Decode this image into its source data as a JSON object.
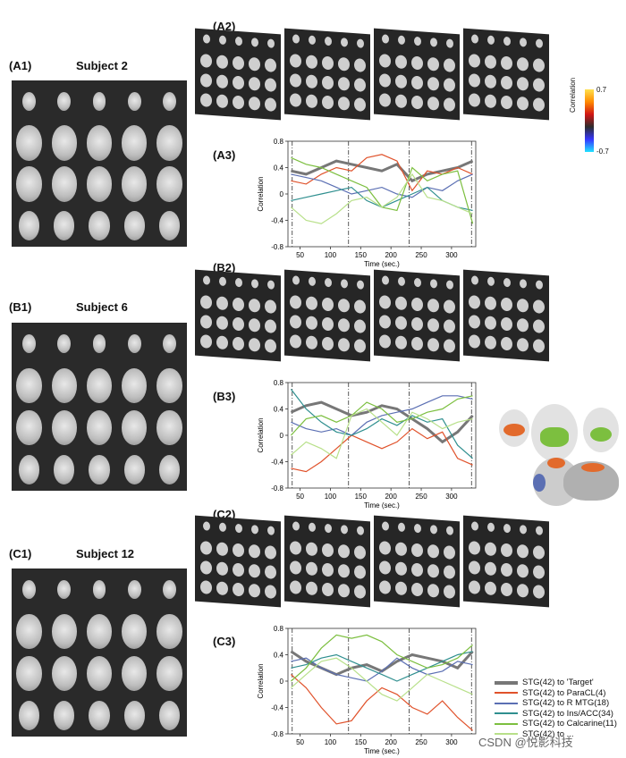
{
  "labels": {
    "a1": "(A1)",
    "a2": "(A2)",
    "a3": "(A3)",
    "b1": "(B1)",
    "b2": "(B2)",
    "b3": "(B3)",
    "c1": "(C1)",
    "c2": "(C2)",
    "c3": "(C3)"
  },
  "subjects": {
    "a": "Subject 2",
    "b": "Subject 6",
    "c": "Subject 12"
  },
  "colorbar": {
    "max": "0.7",
    "min": "-0.7",
    "label": "Correlation"
  },
  "legend": [
    {
      "name": "STG(42) to 'Target'",
      "color": "#777777"
    },
    {
      "name": "STG(42) to ParaCL(4)",
      "color": "#e0522b"
    },
    {
      "name": "STG(42) to R MTG(18)",
      "color": "#5b6fb3"
    },
    {
      "name": "STG(42) to Ins/ACC(34)",
      "color": "#2f8f8f"
    },
    {
      "name": "STG(42) to Calcarine(11)",
      "color": "#7cbf3f"
    },
    {
      "name": "STG(42) to ...",
      "color": "#b8e08a"
    }
  ],
  "watermark": "CSDN @悦影科技",
  "chart_data": [
    {
      "type": "line",
      "id": "A3",
      "xlabel": "Time (sec.)",
      "ylabel": "Correlation",
      "xlim": [
        30,
        340
      ],
      "ylim": [
        -0.8,
        0.8
      ],
      "xticks": [
        50,
        100,
        150,
        200,
        250,
        300
      ],
      "yticks": [
        -0.8,
        -0.4,
        0,
        0.4,
        0.8
      ],
      "markers": [
        37,
        130,
        230,
        333
      ],
      "x": [
        35,
        60,
        85,
        110,
        135,
        160,
        185,
        210,
        235,
        260,
        285,
        310,
        335
      ],
      "series": [
        {
          "values": [
            0.35,
            0.3,
            0.4,
            0.5,
            0.45,
            0.4,
            0.35,
            0.45,
            0.2,
            0.3,
            0.35,
            0.4,
            0.5
          ]
        },
        {
          "values": [
            0.2,
            0.15,
            0.3,
            0.4,
            0.35,
            0.55,
            0.6,
            0.5,
            0.05,
            0.35,
            0.3,
            0.4,
            0.3
          ]
        },
        {
          "values": [
            0.3,
            0.25,
            0.2,
            0.1,
            0.0,
            0.05,
            0.1,
            0.0,
            -0.05,
            0.1,
            0.05,
            0.2,
            0.3
          ]
        },
        {
          "values": [
            -0.1,
            -0.05,
            0.0,
            0.05,
            0.1,
            -0.1,
            -0.2,
            -0.1,
            0.0,
            0.1,
            -0.1,
            -0.2,
            -0.25
          ]
        },
        {
          "values": [
            0.55,
            0.45,
            0.4,
            0.3,
            0.2,
            0.1,
            -0.2,
            -0.25,
            0.4,
            0.2,
            0.3,
            0.35,
            -0.45
          ]
        },
        {
          "values": [
            -0.2,
            -0.4,
            -0.45,
            -0.3,
            -0.1,
            -0.05,
            -0.2,
            -0.05,
            0.3,
            -0.05,
            -0.1,
            -0.2,
            -0.3
          ]
        }
      ]
    },
    {
      "type": "line",
      "id": "B3",
      "xlabel": "Time (sec.)",
      "ylabel": "Correlation",
      "xlim": [
        30,
        340
      ],
      "ylim": [
        -0.8,
        0.8
      ],
      "xticks": [
        50,
        100,
        150,
        200,
        250,
        300
      ],
      "yticks": [
        -0.8,
        -0.4,
        0,
        0.4,
        0.8
      ],
      "markers": [
        37,
        130,
        230,
        333
      ],
      "x": [
        35,
        60,
        85,
        110,
        135,
        160,
        185,
        210,
        235,
        260,
        285,
        310,
        335
      ],
      "series": [
        {
          "values": [
            0.35,
            0.45,
            0.5,
            0.4,
            0.3,
            0.35,
            0.45,
            0.4,
            0.25,
            0.1,
            -0.1,
            0.05,
            0.3
          ]
        },
        {
          "values": [
            -0.5,
            -0.55,
            -0.4,
            -0.2,
            0.0,
            -0.1,
            -0.2,
            -0.1,
            0.1,
            -0.05,
            0.05,
            -0.35,
            -0.45
          ]
        },
        {
          "values": [
            0.2,
            0.1,
            0.05,
            0.1,
            0.0,
            0.2,
            0.3,
            0.35,
            0.4,
            0.5,
            0.6,
            0.6,
            0.55
          ]
        },
        {
          "values": [
            0.7,
            0.4,
            0.2,
            0.05,
            0.0,
            0.1,
            0.25,
            0.15,
            0.3,
            0.2,
            0.25,
            -0.15,
            -0.35
          ]
        },
        {
          "values": [
            0.0,
            0.25,
            0.3,
            0.2,
            0.3,
            0.5,
            0.4,
            0.2,
            0.25,
            0.35,
            0.4,
            0.55,
            0.6
          ]
        },
        {
          "values": [
            -0.3,
            -0.1,
            -0.2,
            -0.35,
            0.3,
            0.4,
            0.2,
            0.0,
            0.35,
            0.25,
            0.1,
            0.2,
            0.25
          ]
        }
      ]
    },
    {
      "type": "line",
      "id": "C3",
      "xlabel": "Time (sec.)",
      "ylabel": "Correlation",
      "xlim": [
        30,
        340
      ],
      "ylim": [
        -0.8,
        0.8
      ],
      "xticks": [
        50,
        100,
        150,
        200,
        250,
        300
      ],
      "yticks": [
        -0.8,
        -0.4,
        0,
        0.4,
        0.8
      ],
      "markers": [
        37,
        130,
        230,
        333
      ],
      "x": [
        35,
        60,
        85,
        110,
        135,
        160,
        185,
        210,
        235,
        260,
        285,
        310,
        335
      ],
      "series": [
        {
          "values": [
            0.45,
            0.3,
            0.2,
            0.1,
            0.2,
            0.25,
            0.15,
            0.3,
            0.4,
            0.35,
            0.3,
            0.2,
            0.45
          ]
        },
        {
          "values": [
            0.1,
            -0.1,
            -0.4,
            -0.65,
            -0.6,
            -0.3,
            -0.1,
            -0.2,
            -0.4,
            -0.5,
            -0.3,
            -0.55,
            -0.75
          ]
        },
        {
          "values": [
            0.3,
            0.35,
            0.2,
            0.1,
            0.05,
            0.0,
            0.15,
            0.35,
            0.2,
            0.1,
            0.15,
            0.3,
            0.25
          ]
        },
        {
          "values": [
            0.2,
            0.25,
            0.35,
            0.4,
            0.3,
            0.2,
            0.1,
            0.0,
            0.1,
            0.2,
            0.3,
            0.4,
            0.45
          ]
        },
        {
          "values": [
            0.0,
            0.2,
            0.5,
            0.7,
            0.65,
            0.7,
            0.6,
            0.4,
            0.3,
            0.2,
            0.25,
            0.35,
            0.55
          ]
        },
        {
          "values": [
            -0.1,
            0.1,
            0.3,
            0.35,
            0.2,
            0.0,
            -0.2,
            -0.3,
            -0.1,
            0.1,
            0.0,
            -0.1,
            -0.2
          ]
        }
      ]
    }
  ]
}
